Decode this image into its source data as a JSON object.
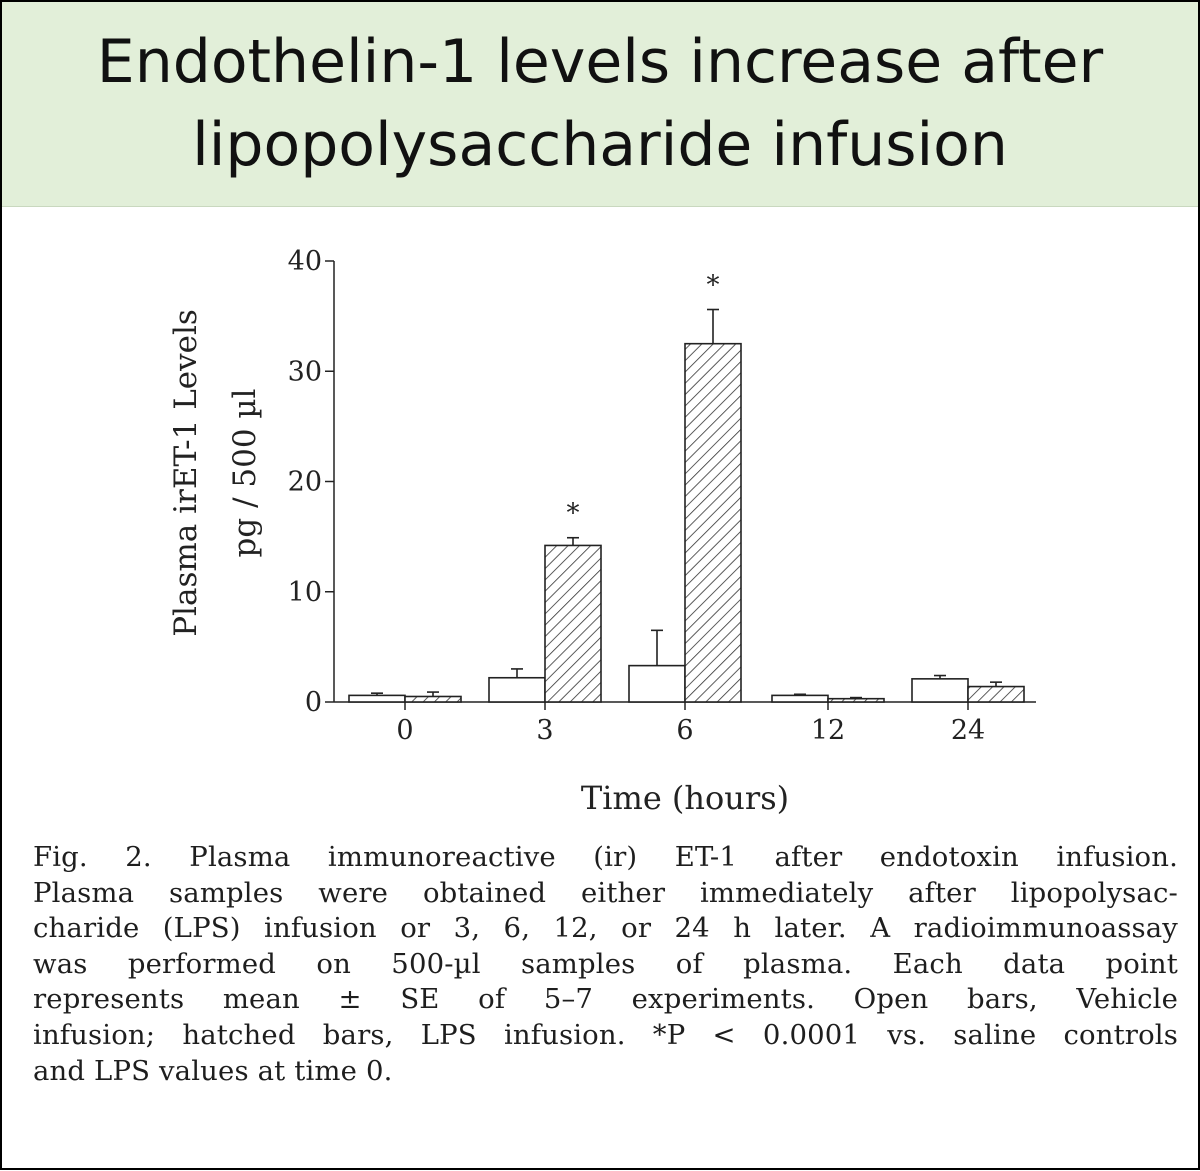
{
  "slide": {
    "title": "Endothelin-1 levels increase after lipopolysaccharide infusion"
  },
  "chart_data": {
    "type": "bar",
    "categories": [
      "0",
      "3",
      "6",
      "12",
      "24"
    ],
    "series": [
      {
        "style": "open",
        "values": [
          0.6,
          2.2,
          3.3,
          0.6,
          2.1
        ],
        "errors": [
          0.2,
          0.8,
          3.2,
          0.1,
          0.3
        ]
      },
      {
        "style": "hatched",
        "values": [
          0.5,
          14.2,
          32.5,
          0.3,
          1.4
        ],
        "errors": [
          0.4,
          0.7,
          3.1,
          0.1,
          0.4
        ]
      }
    ],
    "significance": [
      "",
      "*",
      "*",
      "",
      ""
    ],
    "ylabel_line1": "Plasma irET-1 Levels",
    "ylabel_line2": "pg / 500 µl",
    "xlabel": "Time (hours)",
    "ylim": [
      0,
      40
    ],
    "yticks": [
      0,
      10,
      20,
      30,
      40
    ],
    "colors": {
      "axis": "#222222",
      "open_fill": "#ffffff",
      "hatch": "#333333"
    }
  },
  "caption": {
    "lines": [
      "Fig. 2. Plasma immunoreactive (ir) ET-1 after endotoxin infusion.",
      "Plasma samples were obtained either immediately after lipopolysac-",
      "charide (LPS) infusion or 3, 6, 12, or 24 h later. A radioimmunoassay",
      "was performed on 500-µl samples of plasma. Each data point",
      "represents mean ± SE of 5–7 experiments. Open bars, Vehicle",
      "infusion; hatched bars, LPS infusion. *P < 0.0001 vs. saline controls",
      "and LPS values at time 0."
    ]
  }
}
